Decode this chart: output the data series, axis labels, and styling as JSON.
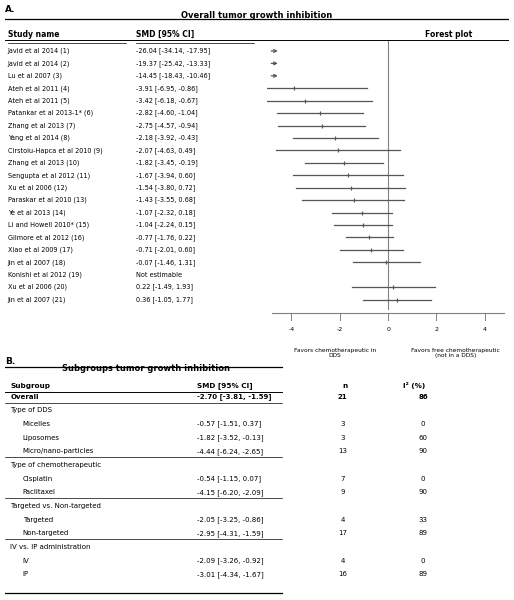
{
  "panel_a_title": "Overall tumor growth inhibition",
  "panel_b_title": "Subgroups tumor growth inhibition",
  "forest_studies": [
    {
      "name": "Javid et al 2014 (1)",
      "smd": -26.04,
      "ci_lo": -34.14,
      "ci_hi": -17.95,
      "off_axis": true
    },
    {
      "name": "Javid et al 2014 (2)",
      "smd": -19.37,
      "ci_lo": -25.42,
      "ci_hi": -13.33,
      "off_axis": true
    },
    {
      "name": "Lu et al 2007 (3)",
      "smd": -14.45,
      "ci_lo": -18.43,
      "ci_hi": -10.46,
      "off_axis": true
    },
    {
      "name": "Ateh et al 2011 (4)",
      "smd": -3.91,
      "ci_lo": -6.95,
      "ci_hi": -0.86,
      "off_axis": false
    },
    {
      "name": "Ateh et al 2011 (5)",
      "smd": -3.42,
      "ci_lo": -6.18,
      "ci_hi": -0.67,
      "off_axis": false
    },
    {
      "name": "Patankar et al 2013-1* (6)",
      "smd": -2.82,
      "ci_lo": -4.6,
      "ci_hi": -1.04,
      "off_axis": false
    },
    {
      "name": "Zhang et al 2013 (7)",
      "smd": -2.75,
      "ci_lo": -4.57,
      "ci_hi": -0.94,
      "off_axis": false
    },
    {
      "name": "Yang et al 2014 (8)",
      "smd": -2.18,
      "ci_lo": -3.92,
      "ci_hi": -0.43,
      "off_axis": false
    },
    {
      "name": "Cirstoiu-Hapca et al 2010 (9)",
      "smd": -2.07,
      "ci_lo": -4.63,
      "ci_hi": 0.49,
      "off_axis": false
    },
    {
      "name": "Zhang et al 2013 (10)",
      "smd": -1.82,
      "ci_lo": -3.45,
      "ci_hi": -0.19,
      "off_axis": false
    },
    {
      "name": "Sengupta et al 2012 (11)",
      "smd": -1.67,
      "ci_lo": -3.94,
      "ci_hi": 0.6,
      "off_axis": false
    },
    {
      "name": "Xu et al 2006 (12)",
      "smd": -1.54,
      "ci_lo": -3.8,
      "ci_hi": 0.72,
      "off_axis": false
    },
    {
      "name": "Paraskar et al 2010 (13)",
      "smd": -1.43,
      "ci_lo": -3.55,
      "ci_hi": 0.68,
      "off_axis": false
    },
    {
      "name": "Ye et al 2013 (14)",
      "smd": -1.07,
      "ci_lo": -2.32,
      "ci_hi": 0.18,
      "off_axis": false
    },
    {
      "name": "Li and Howell 2010* (15)",
      "smd": -1.04,
      "ci_lo": -2.24,
      "ci_hi": 0.15,
      "off_axis": false
    },
    {
      "name": "Gilmore et al 2012 (16)",
      "smd": -0.77,
      "ci_lo": -1.76,
      "ci_hi": 0.22,
      "off_axis": false
    },
    {
      "name": "Xiao et al 2009 (17)",
      "smd": -0.71,
      "ci_lo": -2.01,
      "ci_hi": 0.6,
      "off_axis": false
    },
    {
      "name": "Jin et al 2007 (18)",
      "smd": -0.07,
      "ci_lo": -1.46,
      "ci_hi": 1.31,
      "off_axis": false
    },
    {
      "name": "Konishi et al 2012 (19)",
      "smd": null,
      "ci_lo": null,
      "ci_hi": null,
      "off_axis": false,
      "not_estimable": true
    },
    {
      "name": "Xu et al 2006 (20)",
      "smd": 0.22,
      "ci_lo": -1.49,
      "ci_hi": 1.93,
      "off_axis": false
    },
    {
      "name": "Jin et al 2007 (21)",
      "smd": 0.36,
      "ci_lo": -1.05,
      "ci_hi": 1.77,
      "off_axis": false
    }
  ],
  "forest_ci_text": [
    "-26.04 [-34.14, -17.95]",
    "-19.37 [-25.42, -13.33]",
    "-14.45 [-18.43, -10.46]",
    "-3.91 [-6.95, -0.86]",
    "-3.42 [-6.18, -0.67]",
    "-2.82 [-4.60, -1.04]",
    "-2.75 [-4.57, -0.94]",
    "-2.18 [-3.92, -0.43]",
    "-2.07 [-4.63, 0.49]",
    "-1.82 [-3.45, -0.19]",
    "-1.67 [-3.94, 0.60]",
    "-1.54 [-3.80, 0.72]",
    "-1.43 [-3.55, 0.68]",
    "-1.07 [-2.32, 0.18]",
    "-1.04 [-2.24, 0.15]",
    "-0.77 [-1.76, 0.22]",
    "-0.71 [-2.01, 0.60]",
    "-0.07 [-1.46, 1.31]",
    "Not estimable",
    "0.22 [-1.49, 1.93]",
    "0.36 [-1.05, 1.77]"
  ],
  "x_axis_min": -5.0,
  "x_axis_max": 5.0,
  "x_ticks": [
    -4,
    -2,
    0,
    2,
    4
  ],
  "label_left": "Favors chemotherapeutic in\nDDS",
  "label_right": "Favors free chemotherapeutic\n(not in a DDS)",
  "subgroup_headers": [
    "Subgroup",
    "SMD [95% CI]",
    "n",
    "I² (%)"
  ],
  "subgroup_rows": [
    {
      "label": "Overall",
      "smd_text": "-2.70 [-3.81, -1.59]",
      "n": "21",
      "i2": "86",
      "bold": true,
      "is_category": false
    },
    {
      "label": "Type of DDS",
      "smd_text": "",
      "n": "",
      "i2": "",
      "bold": false,
      "is_category": true
    },
    {
      "label": "Micelles",
      "smd_text": "-0.57 [-1.51, 0.37]",
      "n": "3",
      "i2": "0",
      "bold": false,
      "is_category": false
    },
    {
      "label": "Liposomes",
      "smd_text": "-1.82 [-3.52, -0.13]",
      "n": "3",
      "i2": "60",
      "bold": false,
      "is_category": false
    },
    {
      "label": "Micro/nano-particles",
      "smd_text": "-4.44 [-6.24, -2.65]",
      "n": "13",
      "i2": "90",
      "bold": false,
      "is_category": false
    },
    {
      "label": "Type of chemotherapeutic",
      "smd_text": "",
      "n": "",
      "i2": "",
      "bold": false,
      "is_category": true
    },
    {
      "label": "Cisplatin",
      "smd_text": "-0.54 [-1.15, 0.07]",
      "n": "7",
      "i2": "0",
      "bold": false,
      "is_category": false
    },
    {
      "label": "Paclitaxel",
      "smd_text": "-4.15 [-6.20, -2.09]",
      "n": "9",
      "i2": "90",
      "bold": false,
      "is_category": false
    },
    {
      "label": "Targeted vs. Non-targeted",
      "smd_text": "",
      "n": "",
      "i2": "",
      "bold": false,
      "is_category": true
    },
    {
      "label": "Targeted",
      "smd_text": "-2.05 [-3.25, -0.86]",
      "n": "4",
      "i2": "33",
      "bold": false,
      "is_category": false
    },
    {
      "label": "Non-targeted",
      "smd_text": "-2.95 [-4.31, -1.59]",
      "n": "17",
      "i2": "89",
      "bold": false,
      "is_category": false
    },
    {
      "label": "IV vs. IP administration",
      "smd_text": "",
      "n": "",
      "i2": "",
      "bold": false,
      "is_category": true
    },
    {
      "label": "IV",
      "smd_text": "-2.09 [-3.26, -0.92]",
      "n": "4",
      "i2": "0",
      "bold": false,
      "is_category": false
    },
    {
      "label": "IP",
      "smd_text": "-3.01 [-4.34, -1.67]",
      "n": "16",
      "i2": "89",
      "bold": false,
      "is_category": false
    }
  ],
  "line_color": "black",
  "marker_color": "#555555",
  "ci_color": "#555555",
  "bg_color": "white"
}
